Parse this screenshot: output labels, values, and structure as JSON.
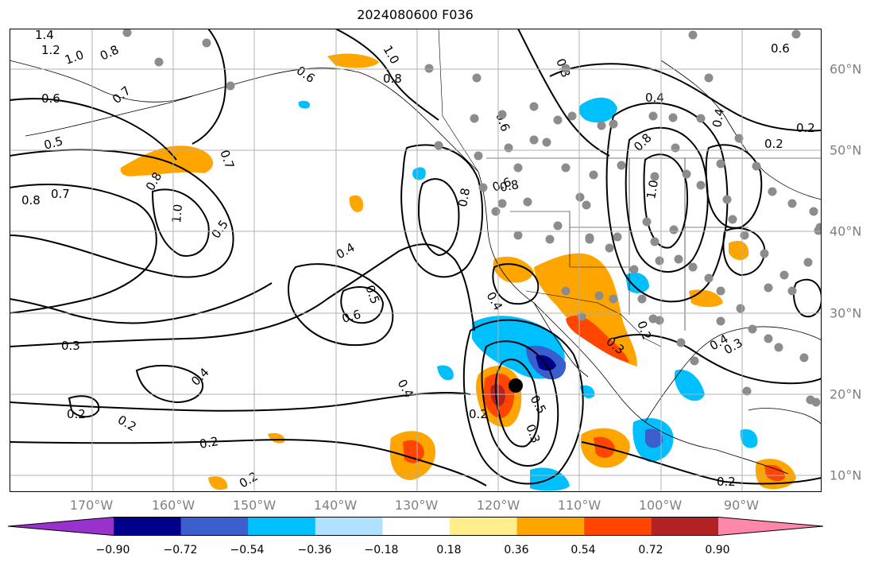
{
  "title": "2024080600 F036",
  "map": {
    "lon_labels": [
      "170°W",
      "160°W",
      "150°W",
      "140°W",
      "130°W",
      "120°W",
      "110°W",
      "100°W",
      "90°W"
    ],
    "lat_labels": [
      "60°N",
      "50°N",
      "40°N",
      "30°N",
      "20°N",
      "10°N"
    ],
    "contour_labels": [
      "1.4",
      "1.2",
      "1.0",
      "0.8",
      "0.6",
      "0.7",
      "0.5",
      "0.8",
      "0.7",
      "0.8",
      "1.0",
      "0.7",
      "0.5",
      "0.8",
      "0.6",
      "0.4",
      "0.5",
      "0.6",
      "0.3",
      "0.4",
      "0.2",
      "0.2",
      "0.2",
      "0.2",
      "0.4",
      "0.3",
      "0.2",
      "0.5",
      "0.4",
      "0.6",
      "0.8",
      "0.4",
      "0.2",
      "0.3",
      "0.4",
      "0.3",
      "0.2",
      "0.2",
      "0.8",
      "0.6",
      "0.3",
      "1.0",
      "0.4",
      "0.2",
      "1.0",
      "0.8",
      "0.6"
    ],
    "marker_color": "#000000",
    "station_color": "#8c8c8c",
    "grid_color": "#b0b0b0"
  },
  "colorbar": {
    "colors": [
      "#9932cc",
      "#00008b",
      "#3a5fcd",
      "#00bfff",
      "#b0e2ff",
      "#ffffff",
      "#ffec8b",
      "#ffa500",
      "#ff4500",
      "#b22222",
      "#ff88aa"
    ],
    "tick_labels": [
      "−0.90",
      "−0.72",
      "−0.54",
      "−0.36",
      "−0.18",
      "0.18",
      "0.36",
      "0.54",
      "0.72",
      "0.90"
    ]
  }
}
